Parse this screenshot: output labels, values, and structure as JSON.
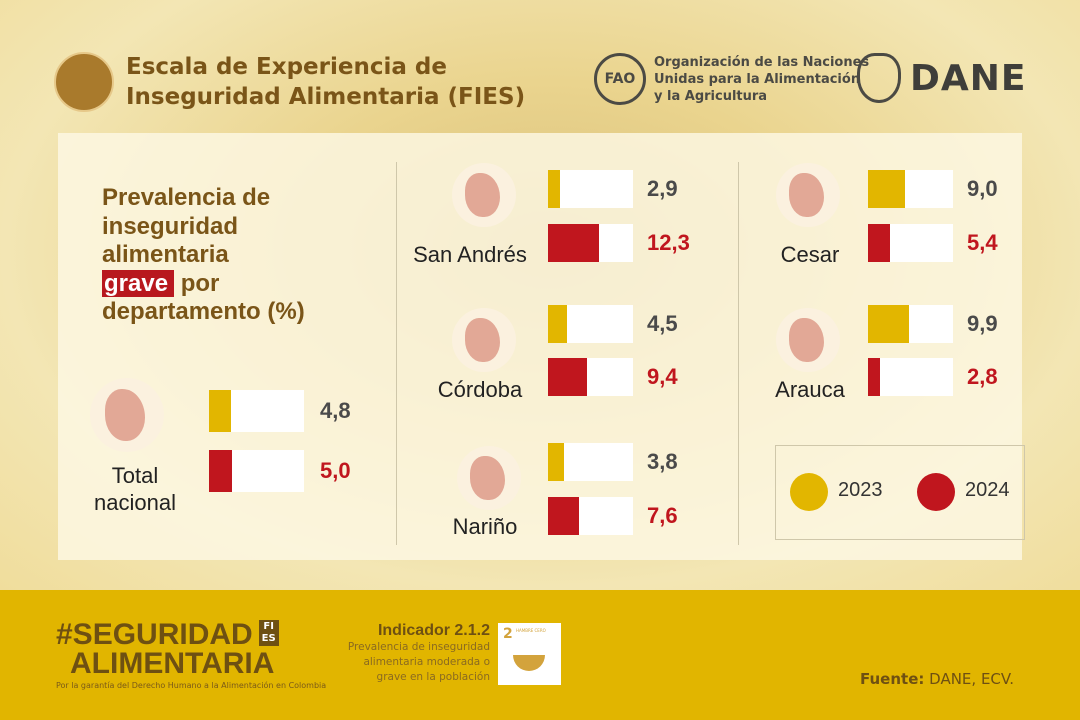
{
  "header": {
    "title_line1": "Escala de Experiencia de",
    "title_line2": "Inseguridad Alimentaria (FIES)",
    "fao_text_line1": "Organización de las Naciones",
    "fao_text_line2": "Unidas para la Alimentación",
    "fao_text_line3": "y la Agricultura",
    "fao_logo": "FAO",
    "dane_logo": "DANE"
  },
  "heading": {
    "line1": "Prevalencia de",
    "line2": "inseguridad",
    "line3": "alimentaria",
    "highlight": "grave",
    "line4_rest": "por",
    "line5": "departamento (%)"
  },
  "colors": {
    "y2023": "#e2b600",
    "y2024": "#c0161e",
    "value_2023": "#4a4a4a",
    "value_2024": "#c0161e"
  },
  "chart_data": {
    "type": "bar",
    "orientation": "horizontal",
    "title": "Prevalencia de inseguridad alimentaria grave por departamento (%)",
    "categories": [
      "Total nacional",
      "San Andrés",
      "Córdoba",
      "Nariño",
      "Cesar",
      "Arauca"
    ],
    "series": [
      {
        "name": "2023",
        "values": [
          4.8,
          2.9,
          4.5,
          3.8,
          9.0,
          9.9
        ],
        "labels": [
          "4,8",
          "2,9",
          "4,5",
          "3,8",
          "9,0",
          "9,9"
        ]
      },
      {
        "name": "2024",
        "values": [
          5.0,
          12.3,
          9.4,
          7.6,
          5.4,
          2.8
        ],
        "labels": [
          "5,0",
          "12,3",
          "9,4",
          "7,6",
          "5,4",
          "2,8"
        ]
      }
    ],
    "xlim": [
      0,
      20.7
    ]
  },
  "legend": {
    "y2023": "2023",
    "y2024": "2024"
  },
  "footer": {
    "hashtag_line1": "#SEGURIDAD",
    "hashtag_line2": "ALIMENTARIA",
    "fies_badge_1": "FI",
    "fies_badge_2": "ES",
    "tagline": "Por la garantía del Derecho Humano a la Alimentación en Colombia",
    "indicator_title": "Indicador 2.1.2",
    "indicator_desc_1": "Prevalencia de inseguridad",
    "indicator_desc_2": "alimentaria moderada o",
    "indicator_desc_3": "grave en la población",
    "sdg_number": "2",
    "sdg_label": "HAMBRE CERO",
    "source_label": "Fuente:",
    "source_value": "DANE, ECV."
  }
}
